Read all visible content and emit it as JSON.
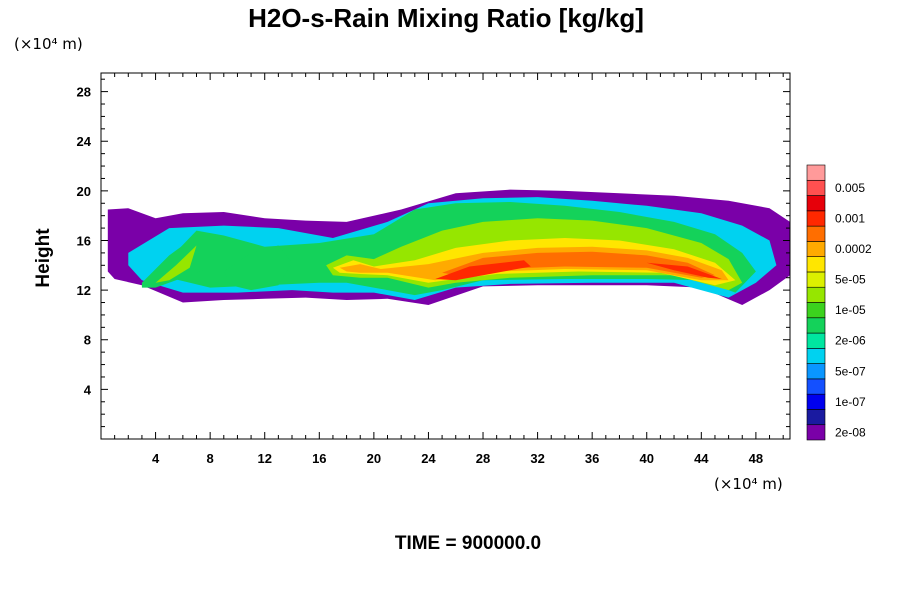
{
  "chart_data": {
    "type": "heatmap",
    "title": "H2O-s-Rain Mixing Ratio [kg/kg]",
    "xlabel": "",
    "ylabel": "Height",
    "x_units": "(×10⁴ m)",
    "y_units": "(×10⁴ m)",
    "xlim": [
      0,
      50.5
    ],
    "ylim": [
      0,
      29.5
    ],
    "x_ticks": [
      4,
      8,
      12,
      16,
      20,
      24,
      28,
      32,
      36,
      40,
      44,
      48
    ],
    "y_ticks": [
      4,
      8,
      12,
      16,
      20,
      24,
      28
    ],
    "grid": false,
    "colorbar": {
      "position": "right",
      "levels": [
        {
          "value": "2e-08",
          "color": "#7a00a8"
        },
        {
          "value": "",
          "color": "#1a1aa0"
        },
        {
          "value": "1e-07",
          "color": "#0000ee"
        },
        {
          "value": "",
          "color": "#1450ff"
        },
        {
          "value": "5e-07",
          "color": "#0a96ff"
        },
        {
          "value": "",
          "color": "#00d2f0"
        },
        {
          "value": "2e-06",
          "color": "#00e6a0"
        },
        {
          "value": "",
          "color": "#14d25a"
        },
        {
          "value": "1e-05",
          "color": "#3cd21e"
        },
        {
          "value": "",
          "color": "#96e600"
        },
        {
          "value": "5e-05",
          "color": "#dcf000"
        },
        {
          "value": "",
          "color": "#ffe600"
        },
        {
          "value": "0.0002",
          "color": "#ffaa00"
        },
        {
          "value": "",
          "color": "#ff6e00"
        },
        {
          "value": "0.001",
          "color": "#ff2800"
        },
        {
          "value": "",
          "color": "#e6000a"
        },
        {
          "value": "0.005",
          "color": "#ff5050"
        },
        {
          "value": "",
          "color": "#ff9a9a"
        }
      ]
    },
    "regions": [
      {
        "name": "outer-envelope",
        "level": 0,
        "x": [
          0.5,
          2,
          4,
          6,
          9,
          12,
          15,
          18,
          22,
          26,
          30,
          34,
          38,
          42,
          46,
          49,
          50.5,
          50.5,
          49,
          47,
          44,
          40,
          36,
          32,
          28,
          24,
          21,
          18,
          15,
          12,
          9,
          6,
          3,
          1,
          0.5
        ],
        "y": [
          18.5,
          18.6,
          17.8,
          18.2,
          18.3,
          17.8,
          17.6,
          17.5,
          18.5,
          19.8,
          20.1,
          20.0,
          19.8,
          19.6,
          19.2,
          18.6,
          17.5,
          13.2,
          12.0,
          10.8,
          12.2,
          12.4,
          12.4,
          12.4,
          12.3,
          10.8,
          11.3,
          11.2,
          11.4,
          11.3,
          11.2,
          11.0,
          12.4,
          12.9,
          13.5
        ]
      },
      {
        "name": "cyan-band",
        "level": 5,
        "x": [
          2,
          5,
          9,
          13,
          17,
          21,
          24,
          28,
          32,
          36,
          40,
          44,
          47,
          49,
          49.5,
          48,
          46,
          42,
          36,
          30,
          26,
          23,
          20,
          17,
          14,
          10,
          6,
          3,
          2
        ],
        "y": [
          15.0,
          17.0,
          17.2,
          17.0,
          16.2,
          17.5,
          19.0,
          19.4,
          19.5,
          19.2,
          18.8,
          18.2,
          17.2,
          16.0,
          14.0,
          12.6,
          11.4,
          12.6,
          12.6,
          12.5,
          12.2,
          11.2,
          11.8,
          11.8,
          12.0,
          11.8,
          11.8,
          12.8,
          14.0
        ]
      },
      {
        "name": "green-band",
        "level": 7,
        "x": [
          5,
          7,
          9,
          12,
          16,
          20,
          23,
          26,
          30,
          34,
          38,
          42,
          45,
          47,
          48,
          46.5,
          44,
          40,
          34,
          28,
          25,
          23,
          21,
          18,
          16,
          12,
          8,
          5
        ],
        "y": [
          14.5,
          16.8,
          16.4,
          15.5,
          15.8,
          16.5,
          18.5,
          19.0,
          19.1,
          18.8,
          18.3,
          17.5,
          16.5,
          15.0,
          13.5,
          11.8,
          12.8,
          12.9,
          12.9,
          12.8,
          12.0,
          11.6,
          12.0,
          12.6,
          12.6,
          12.4,
          12.2,
          13.0
        ]
      },
      {
        "name": "light-green-band",
        "level": 9,
        "x": [
          16.5,
          18,
          20,
          22,
          25,
          28,
          32,
          36,
          40,
          44,
          46,
          47,
          46,
          42,
          36,
          30,
          26,
          24,
          21,
          19,
          17
        ],
        "y": [
          14.0,
          14.8,
          14.5,
          15.5,
          16.8,
          17.5,
          17.8,
          17.6,
          17.0,
          15.8,
          14.5,
          12.6,
          12.0,
          13.2,
          13.2,
          13.0,
          12.6,
          12.2,
          13.0,
          13.0,
          13.2
        ]
      },
      {
        "name": "yellow-band",
        "level": 11,
        "x": [
          17,
          18.5,
          20,
          23,
          26,
          30,
          34,
          38,
          42,
          45,
          46.5,
          45,
          41,
          35,
          29,
          26,
          24,
          21,
          19,
          17.5
        ],
        "y": [
          13.8,
          14.4,
          13.9,
          14.4,
          15.4,
          16.0,
          16.2,
          16.0,
          15.3,
          14.2,
          12.8,
          12.4,
          13.4,
          13.5,
          13.3,
          12.9,
          12.6,
          13.2,
          13.3,
          13.4
        ]
      },
      {
        "name": "orange-band",
        "level": 12,
        "x": [
          17.5,
          19,
          20.5,
          24,
          28,
          32,
          36,
          40,
          43,
          45.5,
          46,
          44,
          40,
          34,
          29,
          26,
          24.5,
          21,
          19,
          18
        ],
        "y": [
          13.8,
          14.1,
          13.7,
          14.1,
          15.0,
          15.4,
          15.5,
          15.2,
          14.6,
          13.6,
          12.8,
          12.8,
          13.6,
          13.7,
          13.5,
          13.2,
          12.8,
          13.4,
          13.4,
          13.5
        ]
      },
      {
        "name": "dark-orange-core",
        "level": 13,
        "x": [
          25,
          28,
          32,
          36,
          40,
          43,
          45,
          44,
          40,
          34,
          29,
          26
        ],
        "y": [
          13.4,
          14.6,
          15.0,
          15.1,
          14.8,
          14.2,
          13.2,
          13.0,
          13.8,
          13.9,
          13.7,
          13.2
        ]
      },
      {
        "name": "red-core-west",
        "level": 14,
        "x": [
          24.5,
          27,
          31,
          31.5,
          29,
          26
        ],
        "y": [
          12.9,
          13.9,
          14.4,
          13.9,
          13.4,
          12.8
        ]
      },
      {
        "name": "red-core-east",
        "level": 14,
        "x": [
          40,
          43,
          45.5,
          44.5,
          42
        ],
        "y": [
          14.2,
          13.9,
          12.9,
          13.0,
          13.6
        ]
      },
      {
        "name": "west-swirl",
        "level": 7,
        "x": [
          3,
          5,
          7,
          8.5,
          8,
          6,
          4,
          3
        ],
        "y": [
          12.6,
          14.8,
          16.4,
          15.2,
          13.8,
          13.0,
          12.2,
          12.2
        ]
      },
      {
        "name": "west-swirl-inner",
        "level": 9,
        "x": [
          4,
          5.5,
          7,
          6.5,
          5
        ],
        "y": [
          12.6,
          14.0,
          15.6,
          13.8,
          12.8
        ]
      },
      {
        "name": "mid-swirl",
        "level": 7,
        "x": [
          9,
          11,
          13,
          14,
          13,
          11,
          9.5
        ],
        "y": [
          13.5,
          15.0,
          15.6,
          14.2,
          12.4,
          12.0,
          12.4
        ]
      }
    ],
    "annotation": "TIME = 900000.0"
  }
}
